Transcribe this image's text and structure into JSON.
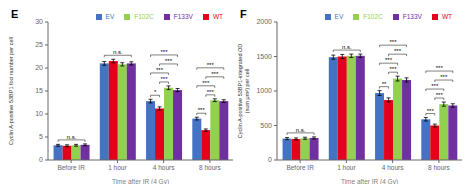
{
  "chart_data": [
    {
      "type": "bar",
      "title": "E",
      "xlabel": "Time after IR (4 Gy)",
      "ylabel": "Cyclin A-positive 53BP1 foci number per cell",
      "categories": [
        "Before IR",
        "1 hour",
        "4 hours",
        "8 hours"
      ],
      "series": [
        {
          "name": "EV",
          "color": "#4472c4",
          "values": [
            3.2,
            21.0,
            12.8,
            9.0
          ],
          "errors": [
            0.2,
            0.4,
            0.4,
            0.3
          ]
        },
        {
          "name": "WT",
          "color": "#e2001a",
          "values": [
            3.1,
            21.5,
            11.2,
            6.5
          ],
          "errors": [
            0.2,
            0.4,
            0.35,
            0.25
          ]
        },
        {
          "name": "F102C",
          "color": "#92d050",
          "values": [
            3.2,
            20.8,
            15.7,
            13.0
          ],
          "errors": [
            0.2,
            0.35,
            0.4,
            0.3
          ]
        },
        {
          "name": "F133V",
          "color": "#7030a0",
          "values": [
            3.3,
            21.0,
            15.2,
            12.8
          ],
          "errors": [
            0.2,
            0.35,
            0.35,
            0.3
          ]
        }
      ],
      "ylim": [
        0,
        30
      ],
      "yticks": [
        0,
        5,
        10,
        15,
        20,
        25,
        30
      ],
      "grid": false,
      "legend": "top-right",
      "annotations": [
        {
          "category": "Before IR",
          "from": "EV",
          "to": "F133V",
          "text": "n.s."
        },
        {
          "category": "1 hour",
          "from": "EV",
          "to": "F133V",
          "text": "n.s."
        },
        {
          "category": "4 hours",
          "from": "EV",
          "to": "WT",
          "text": "*"
        },
        {
          "category": "4 hours",
          "from": "EV",
          "to": "F102C",
          "text": "***"
        },
        {
          "category": "4 hours",
          "from": "EV",
          "to": "F133V",
          "text": "***"
        },
        {
          "category": "4 hours",
          "from": "WT",
          "to": "F102C",
          "text": "***"
        },
        {
          "category": "4 hours",
          "from": "WT",
          "to": "F133V",
          "text": "***"
        },
        {
          "category": "8 hours",
          "from": "EV",
          "to": "WT",
          "text": "***"
        },
        {
          "category": "8 hours",
          "from": "EV",
          "to": "F102C",
          "text": "***"
        },
        {
          "category": "8 hours",
          "from": "EV",
          "to": "F133V",
          "text": "***"
        },
        {
          "category": "8 hours",
          "from": "WT",
          "to": "F102C",
          "text": "***"
        },
        {
          "category": "8 hours",
          "from": "WT",
          "to": "F133V",
          "text": "***"
        }
      ]
    },
    {
      "type": "bar",
      "title": "F",
      "xlabel": "Time after IR (4 Gy)",
      "ylabel": "Cyclin A-positive 53BP1-integrated OD\n(sum μm²) per cell",
      "categories": [
        "Before IR",
        "1 hour",
        "4 hours",
        "8 hours"
      ],
      "series": [
        {
          "name": "EV",
          "color": "#4472c4",
          "values": [
            310,
            1490,
            970,
            590
          ],
          "errors": [
            15,
            30,
            35,
            25
          ]
        },
        {
          "name": "WT",
          "color": "#e2001a",
          "values": [
            305,
            1500,
            870,
            500
          ],
          "errors": [
            15,
            30,
            30,
            20
          ]
        },
        {
          "name": "F102C",
          "color": "#92d050",
          "values": [
            315,
            1510,
            1180,
            810
          ],
          "errors": [
            15,
            25,
            35,
            30
          ]
        },
        {
          "name": "F133V",
          "color": "#7030a0",
          "values": [
            320,
            1510,
            1160,
            790
          ],
          "errors": [
            15,
            25,
            30,
            25
          ]
        }
      ],
      "ylim": [
        0,
        2000
      ],
      "yticks": [
        0,
        500,
        1000,
        1500,
        2000
      ],
      "grid": false,
      "legend": "top-right",
      "annotations": [
        {
          "category": "Before IR",
          "from": "EV",
          "to": "F133V",
          "text": "n.s."
        },
        {
          "category": "1 hour",
          "from": "EV",
          "to": "F133V",
          "text": "n.s."
        },
        {
          "category": "4 hours",
          "from": "EV",
          "to": "WT",
          "text": "**"
        },
        {
          "category": "4 hours",
          "from": "EV",
          "to": "F102C",
          "text": "***"
        },
        {
          "category": "4 hours",
          "from": "EV",
          "to": "F133V",
          "text": "***"
        },
        {
          "category": "4 hours",
          "from": "WT",
          "to": "F102C",
          "text": "***"
        },
        {
          "category": "4 hours",
          "from": "WT",
          "to": "F133V",
          "text": "***"
        },
        {
          "category": "8 hours",
          "from": "EV",
          "to": "WT",
          "text": "***"
        },
        {
          "category": "8 hours",
          "from": "EV",
          "to": "F102C",
          "text": "***"
        },
        {
          "category": "8 hours",
          "from": "EV",
          "to": "F133V",
          "text": "***"
        },
        {
          "category": "8 hours",
          "from": "WT",
          "to": "F102C",
          "text": "***"
        },
        {
          "category": "8 hours",
          "from": "WT",
          "to": "F133V",
          "text": "***"
        }
      ]
    }
  ]
}
